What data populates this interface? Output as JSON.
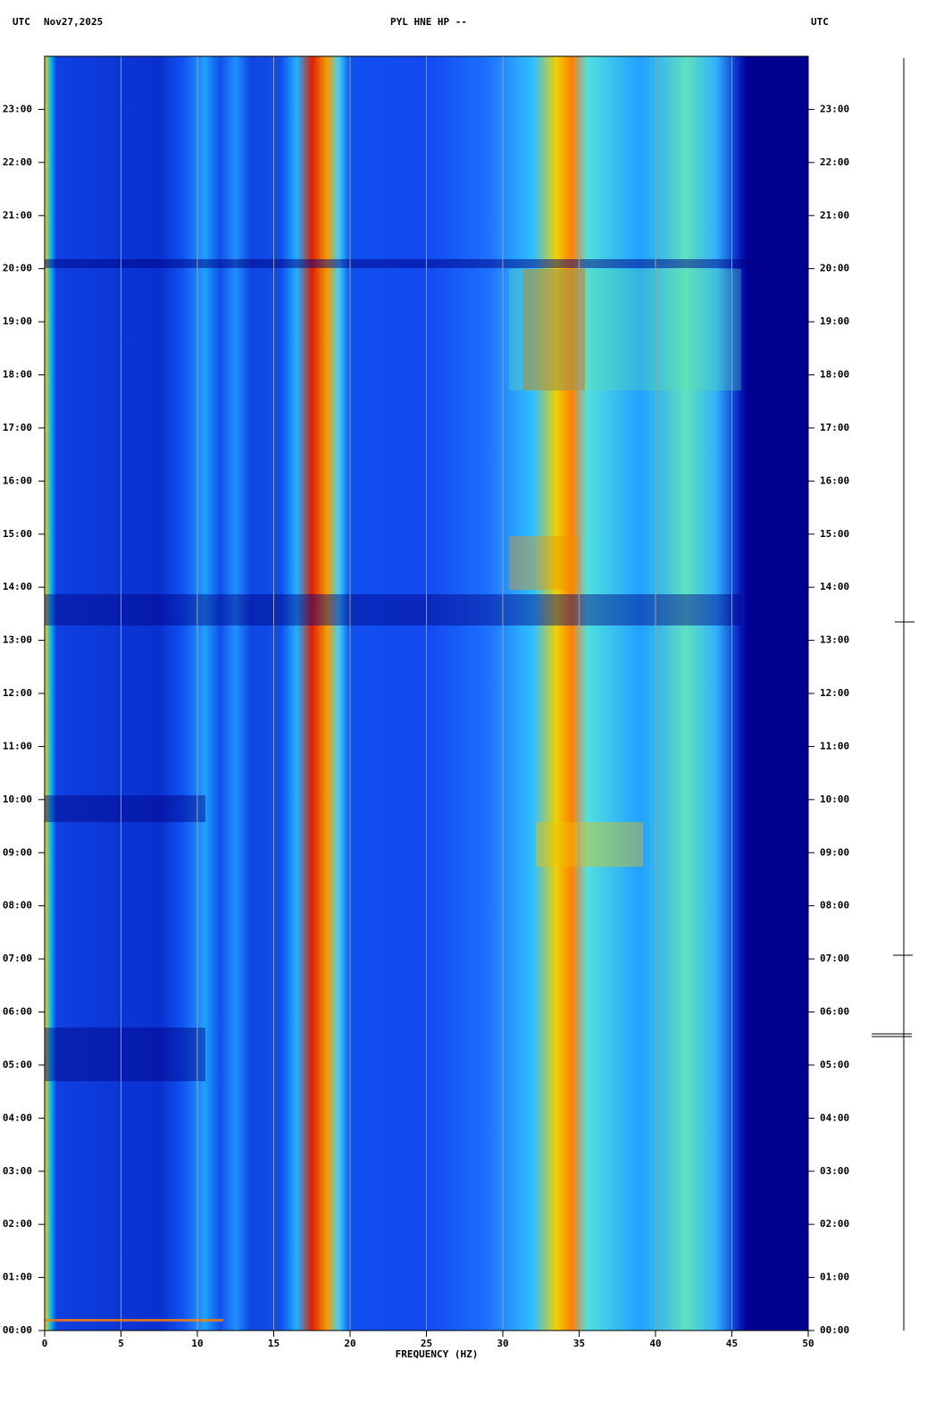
{
  "chart_data": {
    "type": "spectrogram",
    "title": "PYL HNE HP --",
    "timezone_left": "UTC",
    "date": "Nov27,2025",
    "timezone_right": "UTC",
    "xlabel": "FREQUENCY (HZ)",
    "xlim": [
      0,
      50
    ],
    "xticks": [
      0,
      5,
      10,
      15,
      20,
      25,
      30,
      35,
      40,
      45,
      50
    ],
    "ylim": [
      0,
      24
    ],
    "yticks": [
      {
        "value": 0,
        "label": "00:00"
      },
      {
        "value": 1,
        "label": "01:00"
      },
      {
        "value": 2,
        "label": "02:00"
      },
      {
        "value": 3,
        "label": "03:00"
      },
      {
        "value": 4,
        "label": "04:00"
      },
      {
        "value": 5,
        "label": "05:00"
      },
      {
        "value": 6,
        "label": "06:00"
      },
      {
        "value": 7,
        "label": "07:00"
      },
      {
        "value": 8,
        "label": "08:00"
      },
      {
        "value": 9,
        "label": "09:00"
      },
      {
        "value": 10,
        "label": "10:00"
      },
      {
        "value": 11,
        "label": "11:00"
      },
      {
        "value": 12,
        "label": "12:00"
      },
      {
        "value": 13,
        "label": "13:00"
      },
      {
        "value": 14,
        "label": "14:00"
      },
      {
        "value": 15,
        "label": "15:00"
      },
      {
        "value": 16,
        "label": "16:00"
      },
      {
        "value": 17,
        "label": "17:00"
      },
      {
        "value": 18,
        "label": "18:00"
      },
      {
        "value": 19,
        "label": "19:00"
      },
      {
        "value": 20,
        "label": "20:00"
      },
      {
        "value": 21,
        "label": "21:00"
      },
      {
        "value": 22,
        "label": "22:00"
      },
      {
        "value": 23,
        "label": "23:00"
      }
    ],
    "grid": true,
    "grid_color": "#a0a0a0"
  }
}
